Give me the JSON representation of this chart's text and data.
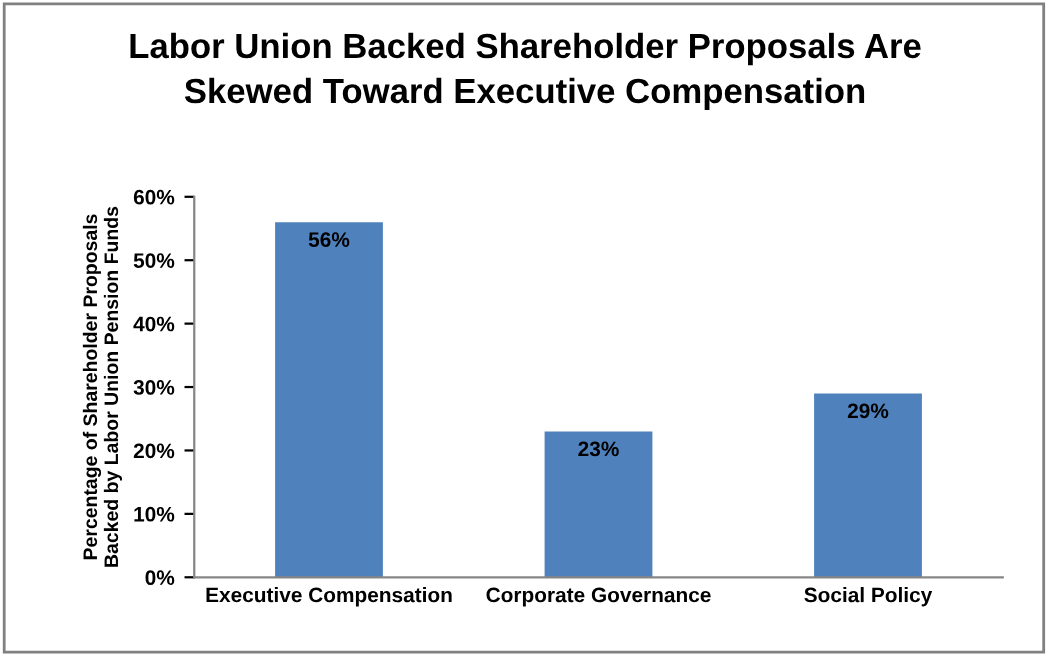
{
  "chart_data": {
    "type": "bar",
    "title": "Labor Union Backed Shareholder Proposals Are\nSkewed Toward Executive Compensation",
    "ylabel": "Percentage of Shareholder Proposals\nBacked by Labor Union Pension Funds",
    "categories": [
      "Executive Compensation",
      "Corporate Governance",
      "Social Policy"
    ],
    "values": [
      56,
      23,
      29
    ],
    "value_labels": [
      "56%",
      "23%",
      "29%"
    ],
    "color": "#4f81bd",
    "ylim": [
      0,
      60
    ],
    "yticks": [
      {
        "value": 0,
        "label": "0%"
      },
      {
        "value": 10,
        "label": "10%"
      },
      {
        "value": 20,
        "label": "20%"
      },
      {
        "value": 30,
        "label": "30%"
      },
      {
        "value": 40,
        "label": "40%"
      },
      {
        "value": 50,
        "label": "50%"
      },
      {
        "value": 60,
        "label": "60%"
      }
    ],
    "grid": false,
    "legend": false
  }
}
